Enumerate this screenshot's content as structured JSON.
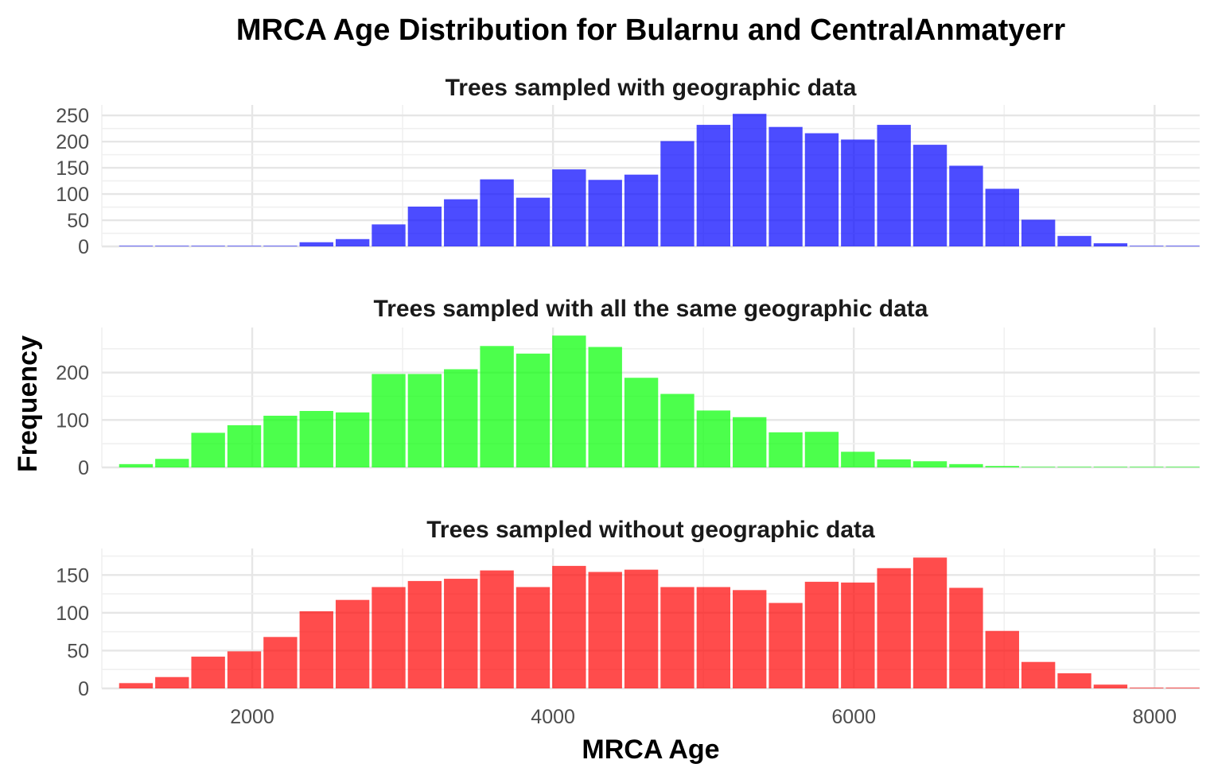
{
  "chart_data": {
    "type": "bar",
    "title": "MRCA Age Distribution for Bularnu and CentralAnmatyerr",
    "xlabel": "MRCA Age",
    "ylabel": "Frequency",
    "x_ticks": [
      2000,
      4000,
      6000,
      8000
    ],
    "xlim": [
      1000,
      8300
    ],
    "bin_width": 240,
    "bin_starts": [
      1107,
      1347,
      1587,
      1827,
      2067,
      2307,
      2547,
      2787,
      3027,
      3267,
      3507,
      3747,
      3987,
      4227,
      4467,
      4707,
      4947,
      5187,
      5427,
      5667,
      5907,
      6147,
      6387,
      6627,
      6867,
      7107,
      7347,
      7587,
      7827,
      8067
    ],
    "grid": true,
    "legend": "none",
    "panels": [
      {
        "title": "Trees sampled with geographic data",
        "color": "#0000ff",
        "y_ticks": [
          0,
          50,
          100,
          150,
          200,
          250
        ],
        "ylim": [
          0,
          270
        ],
        "values": [
          1,
          0,
          0,
          0,
          0,
          8,
          14,
          42,
          76,
          90,
          128,
          93,
          147,
          127,
          137,
          201,
          232,
          253,
          228,
          216,
          204,
          232,
          194,
          154,
          110,
          51,
          20,
          6,
          0,
          1
        ]
      },
      {
        "title": "Trees sampled with all the same geographic data",
        "color": "#00ff00",
        "y_ticks": [
          0,
          100,
          200
        ],
        "ylim": [
          0,
          295
        ],
        "values": [
          7,
          18,
          73,
          89,
          109,
          119,
          116,
          197,
          197,
          207,
          256,
          240,
          278,
          254,
          189,
          155,
          120,
          106,
          74,
          75,
          33,
          17,
          13,
          7,
          3,
          1,
          1,
          1,
          1,
          1
        ]
      },
      {
        "title": "Trees sampled without geographic data",
        "color": "#ff0000",
        "y_ticks": [
          0,
          50,
          100,
          150
        ],
        "ylim": [
          0,
          185
        ],
        "values": [
          7,
          15,
          42,
          49,
          68,
          102,
          117,
          134,
          142,
          145,
          156,
          134,
          162,
          154,
          157,
          134,
          134,
          130,
          113,
          141,
          140,
          159,
          173,
          133,
          76,
          35,
          20,
          5,
          1,
          1
        ]
      }
    ]
  }
}
